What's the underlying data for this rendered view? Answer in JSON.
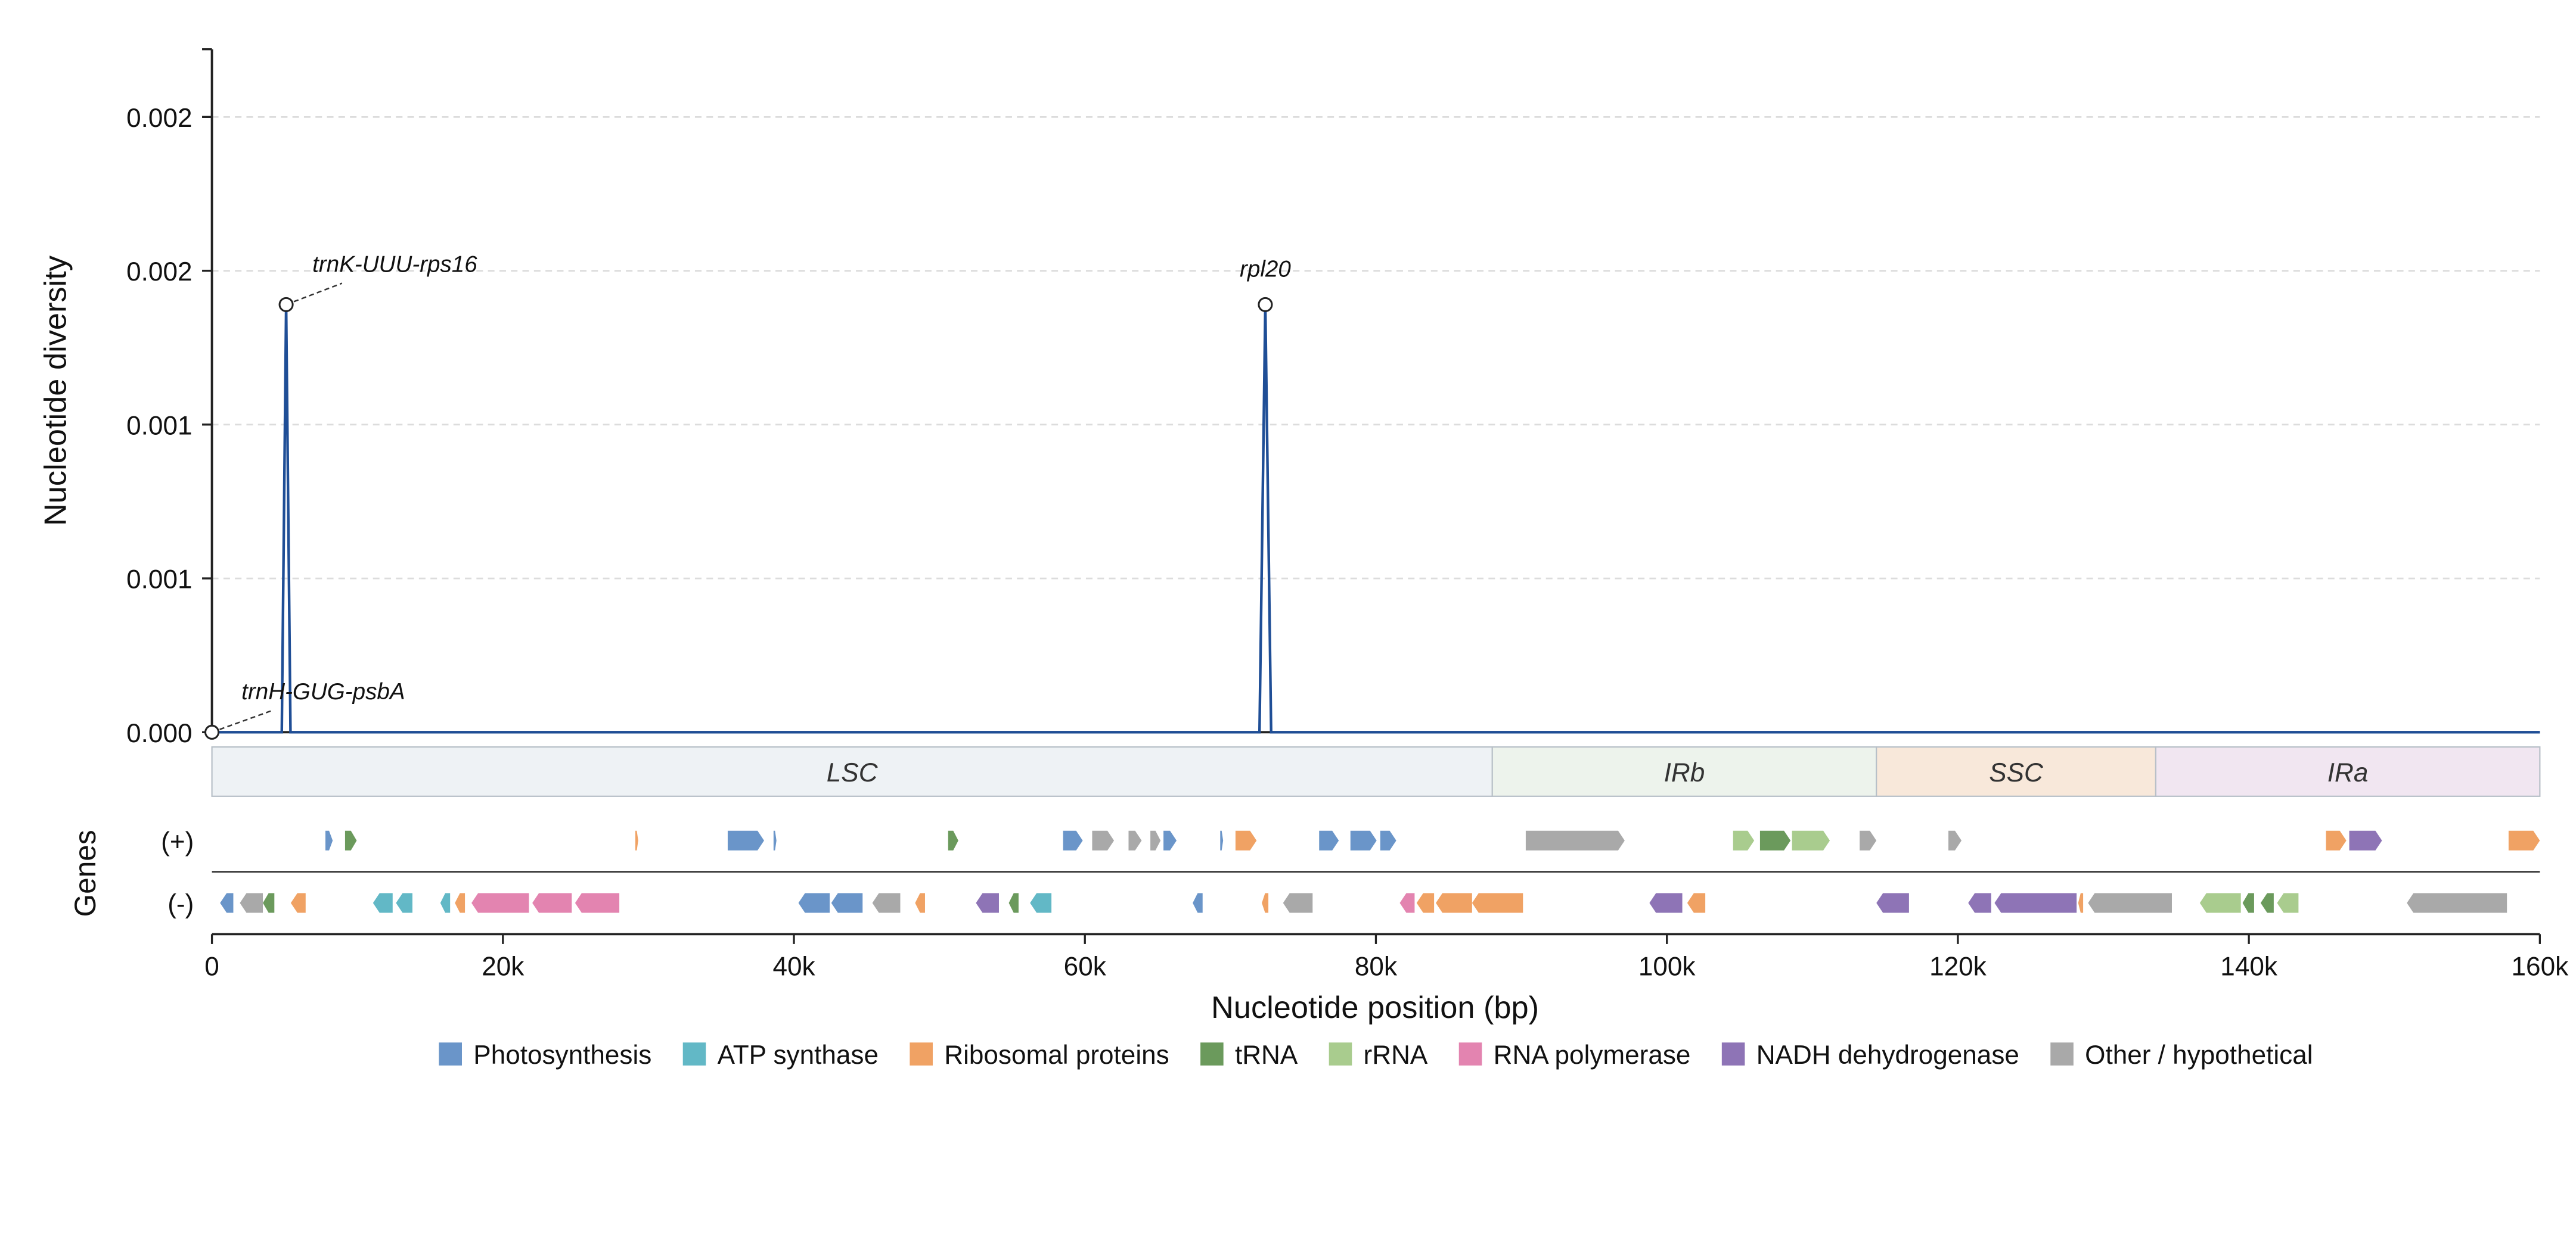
{
  "chart_data": {
    "type": "line",
    "y_label": "Nucleotide diversity",
    "x_label": "Nucleotide position (bp)",
    "genes_label": "Genes",
    "strand_labels": [
      "(+)",
      "(-)"
    ],
    "x": [
      0,
      4800,
      5100,
      5400,
      72000,
      72400,
      72800,
      160000
    ],
    "values": [
      0,
      0,
      0.00139,
      0,
      0,
      0.00139,
      0,
      0
    ],
    "color": "#1f4e96",
    "xlim": [
      0,
      160000
    ],
    "xticks": [
      0,
      {
        "value": 20000,
        "label": "20k"
      },
      {
        "value": 40000,
        "label": "40k"
      },
      {
        "value": 60000,
        "label": "60k"
      },
      {
        "value": 80000,
        "label": "80k"
      },
      {
        "value": 100000,
        "label": "100k"
      },
      {
        "value": 120000,
        "label": "120k"
      },
      {
        "value": 140000,
        "label": "140k"
      },
      {
        "value": 160000,
        "label": "160k"
      }
    ],
    "ylim": [
      0,
      0.00222
    ],
    "yticks": [
      {
        "value": 0,
        "label": "0.000"
      },
      {
        "value": 0.0005,
        "label": "0.001"
      },
      {
        "value": 0.001,
        "label": "0.001"
      },
      {
        "value": 0.0015,
        "label": "0.002"
      },
      {
        "value": 0.002,
        "label": "0.002"
      }
    ],
    "grid": true,
    "annotations": [
      {
        "text": "trnH-GUG-psbA",
        "x": 0,
        "y": 0
      },
      {
        "text": "trnK-UUU-rps16",
        "x": 5100,
        "y": 0.00139
      },
      {
        "text": "rpl20",
        "x": 72400,
        "y": 0.00139
      }
    ],
    "regions": [
      {
        "name": "LSC",
        "start": 0,
        "end": 88000,
        "color": "#eef2f5"
      },
      {
        "name": "IRb",
        "start": 88000,
        "end": 114400,
        "color": "#edf3ec"
      },
      {
        "name": "SSC",
        "start": 114400,
        "end": 133600,
        "color": "#f8e8da"
      },
      {
        "name": "IRa",
        "start": 133600,
        "end": 160000,
        "color": "#f1e6f1"
      }
    ],
    "categories": [
      {
        "name": "Photosynthesis",
        "color": "#6a95c9"
      },
      {
        "name": "ATP synthase",
        "color": "#62b8c6"
      },
      {
        "name": "Ribosomal proteins",
        "color": "#f0a264"
      },
      {
        "name": "tRNA",
        "color": "#6b9a5c"
      },
      {
        "name": "rRNA",
        "color": "#a9cc8e"
      },
      {
        "name": "RNA polymerase",
        "color": "#e384b0"
      },
      {
        "name": "NADH dehydrogenase",
        "color": "#8e74b6"
      },
      {
        "name": "Other / hypothetical",
        "color": "#a9a9a9"
      }
    ],
    "genes": {
      "plus": [
        [
          7800,
          8300,
          0
        ],
        [
          9150,
          9950,
          3
        ],
        [
          29100,
          29300,
          2
        ],
        [
          35450,
          37950,
          0
        ],
        [
          38600,
          38800,
          0
        ],
        [
          50600,
          51300,
          3
        ],
        [
          58500,
          59850,
          0
        ],
        [
          60500,
          62000,
          7
        ],
        [
          63000,
          63900,
          7
        ],
        [
          64500,
          65200,
          7
        ],
        [
          65400,
          66300,
          0
        ],
        [
          69300,
          69500,
          0
        ],
        [
          70350,
          71800,
          2
        ],
        [
          76100,
          77450,
          0
        ],
        [
          78250,
          80050,
          0
        ],
        [
          80300,
          81400,
          0
        ],
        [
          90300,
          97100,
          7
        ],
        [
          104550,
          106000,
          4
        ],
        [
          106400,
          108500,
          3
        ],
        [
          108600,
          111200,
          4
        ],
        [
          113250,
          114400,
          7
        ],
        [
          119350,
          120250,
          7
        ],
        [
          145300,
          146700,
          2
        ],
        [
          146900,
          149150,
          6
        ],
        [
          157850,
          160000,
          2
        ]
      ],
      "minus": [
        [
          560,
          1470,
          0
        ],
        [
          1920,
          3500,
          7
        ],
        [
          3500,
          4290,
          3
        ],
        [
          5420,
          6440,
          2
        ],
        [
          11070,
          12420,
          1
        ],
        [
          12650,
          13780,
          1
        ],
        [
          15700,
          16370,
          1
        ],
        [
          16700,
          17390,
          2
        ],
        [
          17840,
          21790,
          5
        ],
        [
          22020,
          24730,
          5
        ],
        [
          24960,
          28000,
          5
        ],
        [
          40310,
          42460,
          0
        ],
        [
          42570,
          44720,
          0
        ],
        [
          45390,
          47310,
          7
        ],
        [
          48330,
          49010,
          2
        ],
        [
          52510,
          54090,
          6
        ],
        [
          54770,
          55440,
          3
        ],
        [
          56230,
          57700,
          1
        ],
        [
          67410,
          68090,
          0
        ],
        [
          72160,
          72610,
          2
        ],
        [
          73620,
          75650,
          7
        ],
        [
          81640,
          82660,
          5
        ],
        [
          82800,
          84000,
          2
        ],
        [
          84120,
          86610,
          2
        ],
        [
          86610,
          90110,
          2
        ],
        [
          98800,
          101060,
          6
        ],
        [
          101400,
          102640,
          2
        ],
        [
          114400,
          116640,
          6
        ],
        [
          120710,
          122290,
          6
        ],
        [
          122520,
          128160,
          6
        ],
        [
          128270,
          128610,
          2
        ],
        [
          128950,
          134710,
          7
        ],
        [
          136630,
          139450,
          4
        ],
        [
          139570,
          140360,
          3
        ],
        [
          140810,
          141710,
          3
        ],
        [
          141940,
          143410,
          4
        ],
        [
          150860,
          157740,
          7
        ]
      ]
    }
  }
}
